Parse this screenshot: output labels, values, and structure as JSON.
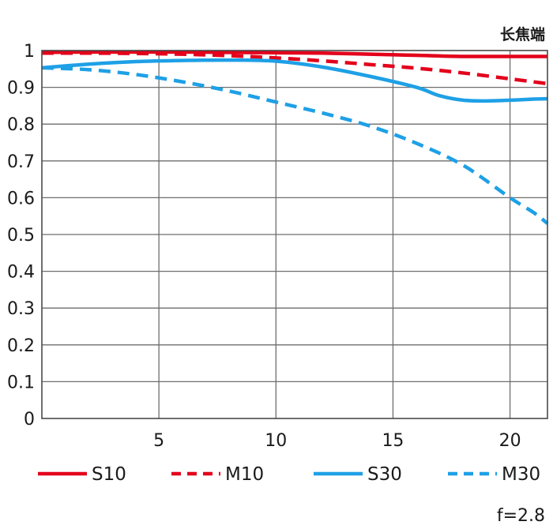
{
  "chart_data": {
    "type": "line",
    "subtitle": "长焦端",
    "note": "f=2.8",
    "xlim": [
      0,
      21.6
    ],
    "ylim": [
      0,
      1
    ],
    "x_ticks": [
      5,
      10,
      15,
      20
    ],
    "y_ticks": [
      0,
      0.1,
      0.2,
      0.3,
      0.4,
      0.5,
      0.6,
      0.7,
      0.8,
      0.9,
      1
    ],
    "y_tick_labels": [
      "0",
      "0.1",
      "0.2",
      "0.3",
      "0.4",
      "0.5",
      "0.6",
      "0.7",
      "0.8",
      "0.9",
      "1"
    ],
    "grid": true,
    "legend_position": "bottom",
    "series": [
      {
        "name": "S10",
        "color": "#e3001b",
        "style": "solid",
        "x": [
          0,
          2,
          4,
          6,
          8,
          10,
          12,
          14,
          16,
          18,
          20,
          21.6
        ],
        "y": [
          0.995,
          0.996,
          0.996,
          0.996,
          0.995,
          0.994,
          0.993,
          0.99,
          0.987,
          0.984,
          0.984,
          0.984
        ]
      },
      {
        "name": "M10",
        "color": "#e3001b",
        "style": "dashed",
        "x": [
          0,
          2,
          4,
          6,
          8,
          10,
          12,
          14,
          16,
          18,
          20,
          21.6
        ],
        "y": [
          0.993,
          0.993,
          0.992,
          0.99,
          0.986,
          0.98,
          0.972,
          0.962,
          0.952,
          0.939,
          0.923,
          0.91
        ]
      },
      {
        "name": "S30",
        "color": "#1ea0e6",
        "style": "solid",
        "x": [
          0,
          2,
          4,
          6,
          8,
          10,
          12,
          14,
          16,
          17,
          18,
          19,
          20,
          21,
          21.6
        ],
        "y": [
          0.953,
          0.963,
          0.97,
          0.973,
          0.974,
          0.971,
          0.955,
          0.93,
          0.9,
          0.877,
          0.865,
          0.863,
          0.865,
          0.868,
          0.869
        ]
      },
      {
        "name": "M30",
        "color": "#1ea0e6",
        "style": "dashed",
        "x": [
          0,
          2,
          4,
          6,
          8,
          10,
          12,
          14,
          16,
          18,
          20,
          21,
          21.6
        ],
        "y": [
          0.953,
          0.948,
          0.935,
          0.915,
          0.89,
          0.86,
          0.83,
          0.795,
          0.748,
          0.688,
          0.6,
          0.56,
          0.53
        ]
      }
    ]
  }
}
